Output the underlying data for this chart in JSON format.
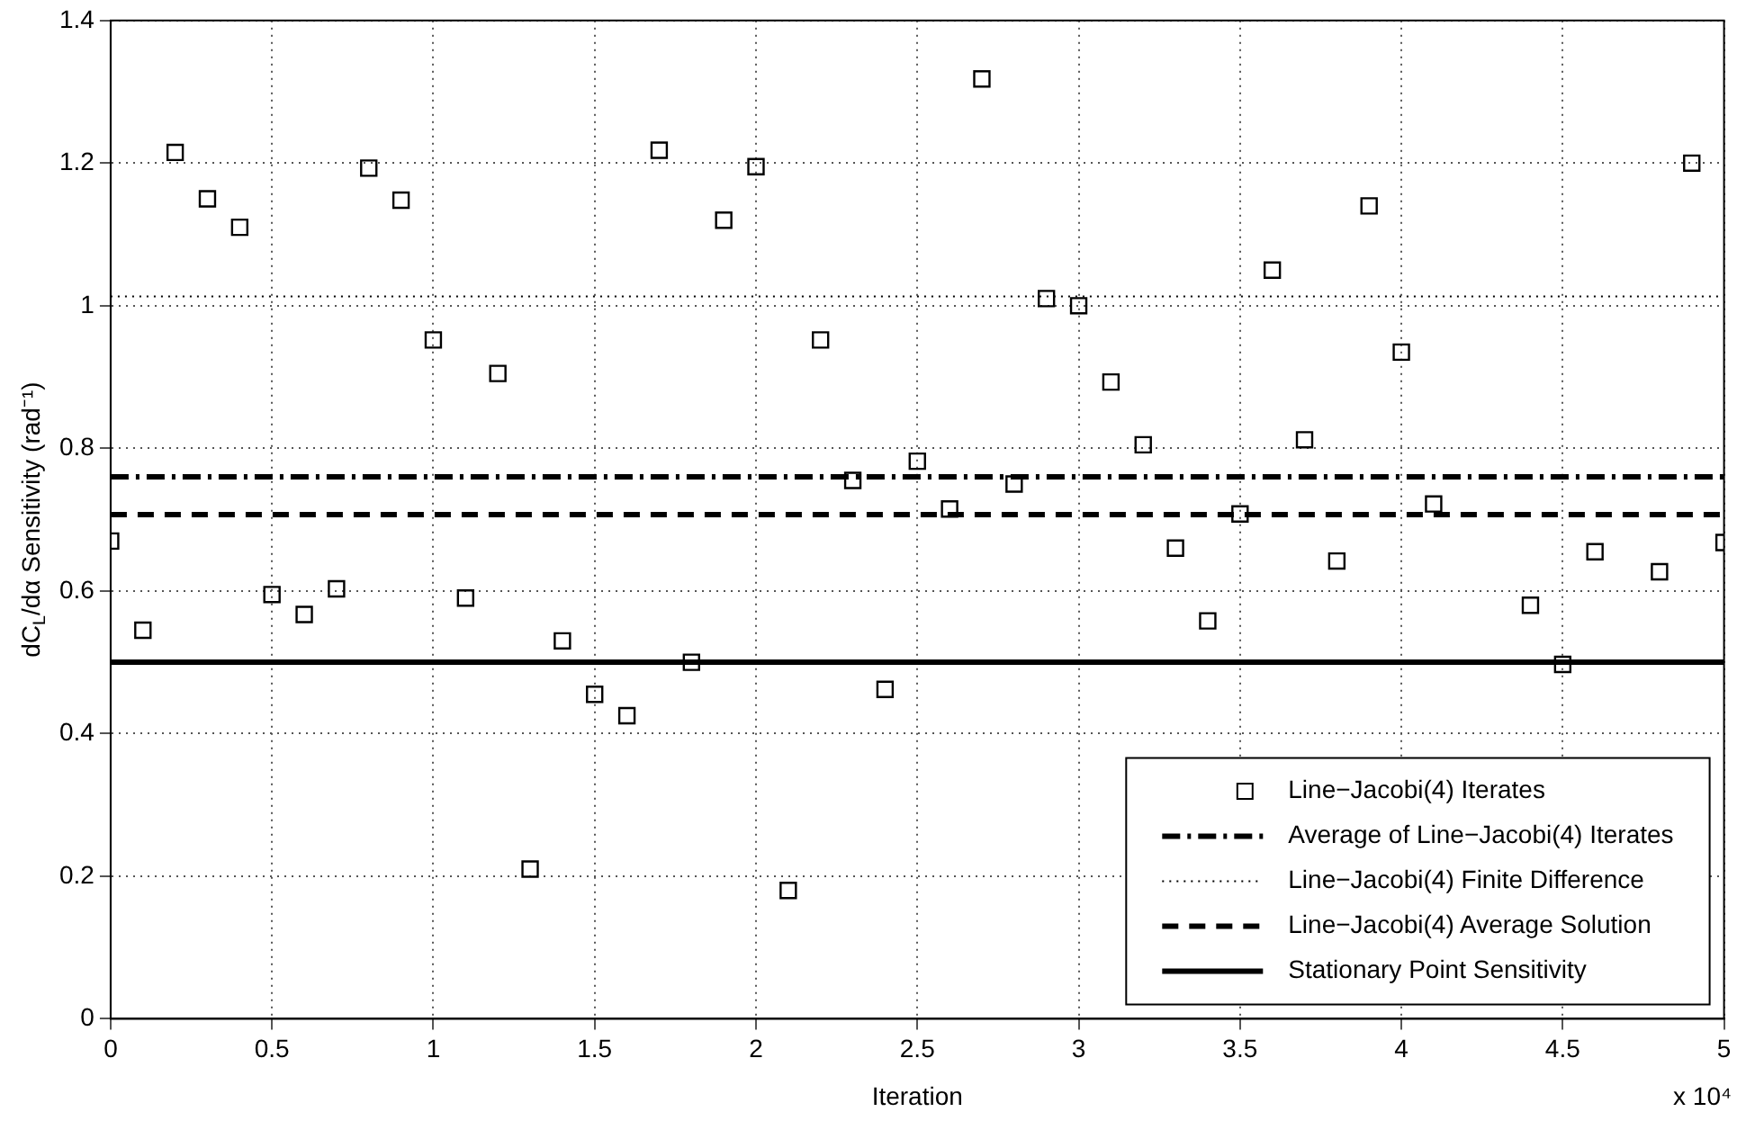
{
  "chart_data": {
    "type": "scatter",
    "xlabel": "Iteration",
    "ylabel": "dC$_{L}$/dα Sensitivity (rad⁻¹)",
    "xlim": [
      0,
      5
    ],
    "xticks": [
      0,
      0.5,
      1,
      1.5,
      2,
      2.5,
      3,
      3.5,
      4,
      4.5,
      5
    ],
    "ylim": [
      0,
      1.4
    ],
    "yticks": [
      0,
      0.2,
      0.4,
      0.6,
      0.8,
      1,
      1.2,
      1.4
    ],
    "grid": true,
    "legend": "bottom right",
    "annotations": [
      "x 10⁴"
    ],
    "series": [
      {
        "name": "Line−Jacobi(4) Iterates",
        "marker": "square",
        "color": "#000000",
        "x": [
          0,
          0.1,
          0.2,
          0.3,
          0.4,
          0.5,
          0.6,
          0.7,
          0.8,
          0.9,
          1,
          1.1,
          1.2,
          1.3,
          1.4,
          1.5,
          1.6,
          1.7,
          1.8,
          1.9,
          2,
          2.1,
          2.2,
          2.3,
          2.4,
          2.5,
          2.6,
          2.7,
          2.8,
          2.9,
          3,
          3.1,
          3.2,
          3.3,
          3.4,
          3.5,
          3.6,
          3.7,
          3.8,
          3.9,
          4,
          4.1,
          4.2,
          4.3,
          4.4,
          4.5,
          4.6,
          4.7,
          4.8,
          4.9,
          5
        ],
        "values": [
          0.67,
          0.545,
          1.215,
          1.15,
          1.11,
          0.595,
          0.567,
          0.603,
          1.193,
          1.148,
          0.952,
          0.59,
          0.905,
          0.21,
          0.53,
          0.455,
          0.425,
          1.218,
          0.5,
          1.12,
          1.195,
          0.18,
          0.952,
          0.755,
          0.462,
          0.782,
          0.715,
          1.318,
          0.75,
          1.01,
          1.0,
          0.893,
          0.805,
          0.66,
          0.558,
          0.708,
          1.05,
          0.812,
          0.642,
          1.14,
          0.935,
          0.722,
          null,
          null,
          0.58,
          0.497,
          0.655,
          null,
          0.627,
          1.2,
          0.668
        ]
      },
      {
        "name": "Average of Line−Jacobi(4) Iterates",
        "type": "line",
        "line_style": "dashdot",
        "marker": "none",
        "color": "#000000",
        "x": [
          0,
          5
        ],
        "values": [
          0.76,
          0.76
        ]
      },
      {
        "name": "Line−Jacobi(4) Finite Difference",
        "type": "line",
        "line_style": "dotted",
        "marker": "none",
        "color": "#000000",
        "x": [
          0,
          5
        ],
        "values": [
          1.013,
          1.013
        ]
      },
      {
        "name": "Line−Jacobi(4) Average Solution",
        "type": "line",
        "line_style": "dashed",
        "marker": "none",
        "color": "#000000",
        "x": [
          0,
          5
        ],
        "values": [
          0.707,
          0.707
        ]
      },
      {
        "name": "Stationary Point Sensitivity",
        "type": "line",
        "line_style": "solid",
        "marker": "none",
        "color": "#000000",
        "x": [
          0,
          5
        ],
        "values": [
          0.5,
          0.5
        ]
      }
    ]
  }
}
